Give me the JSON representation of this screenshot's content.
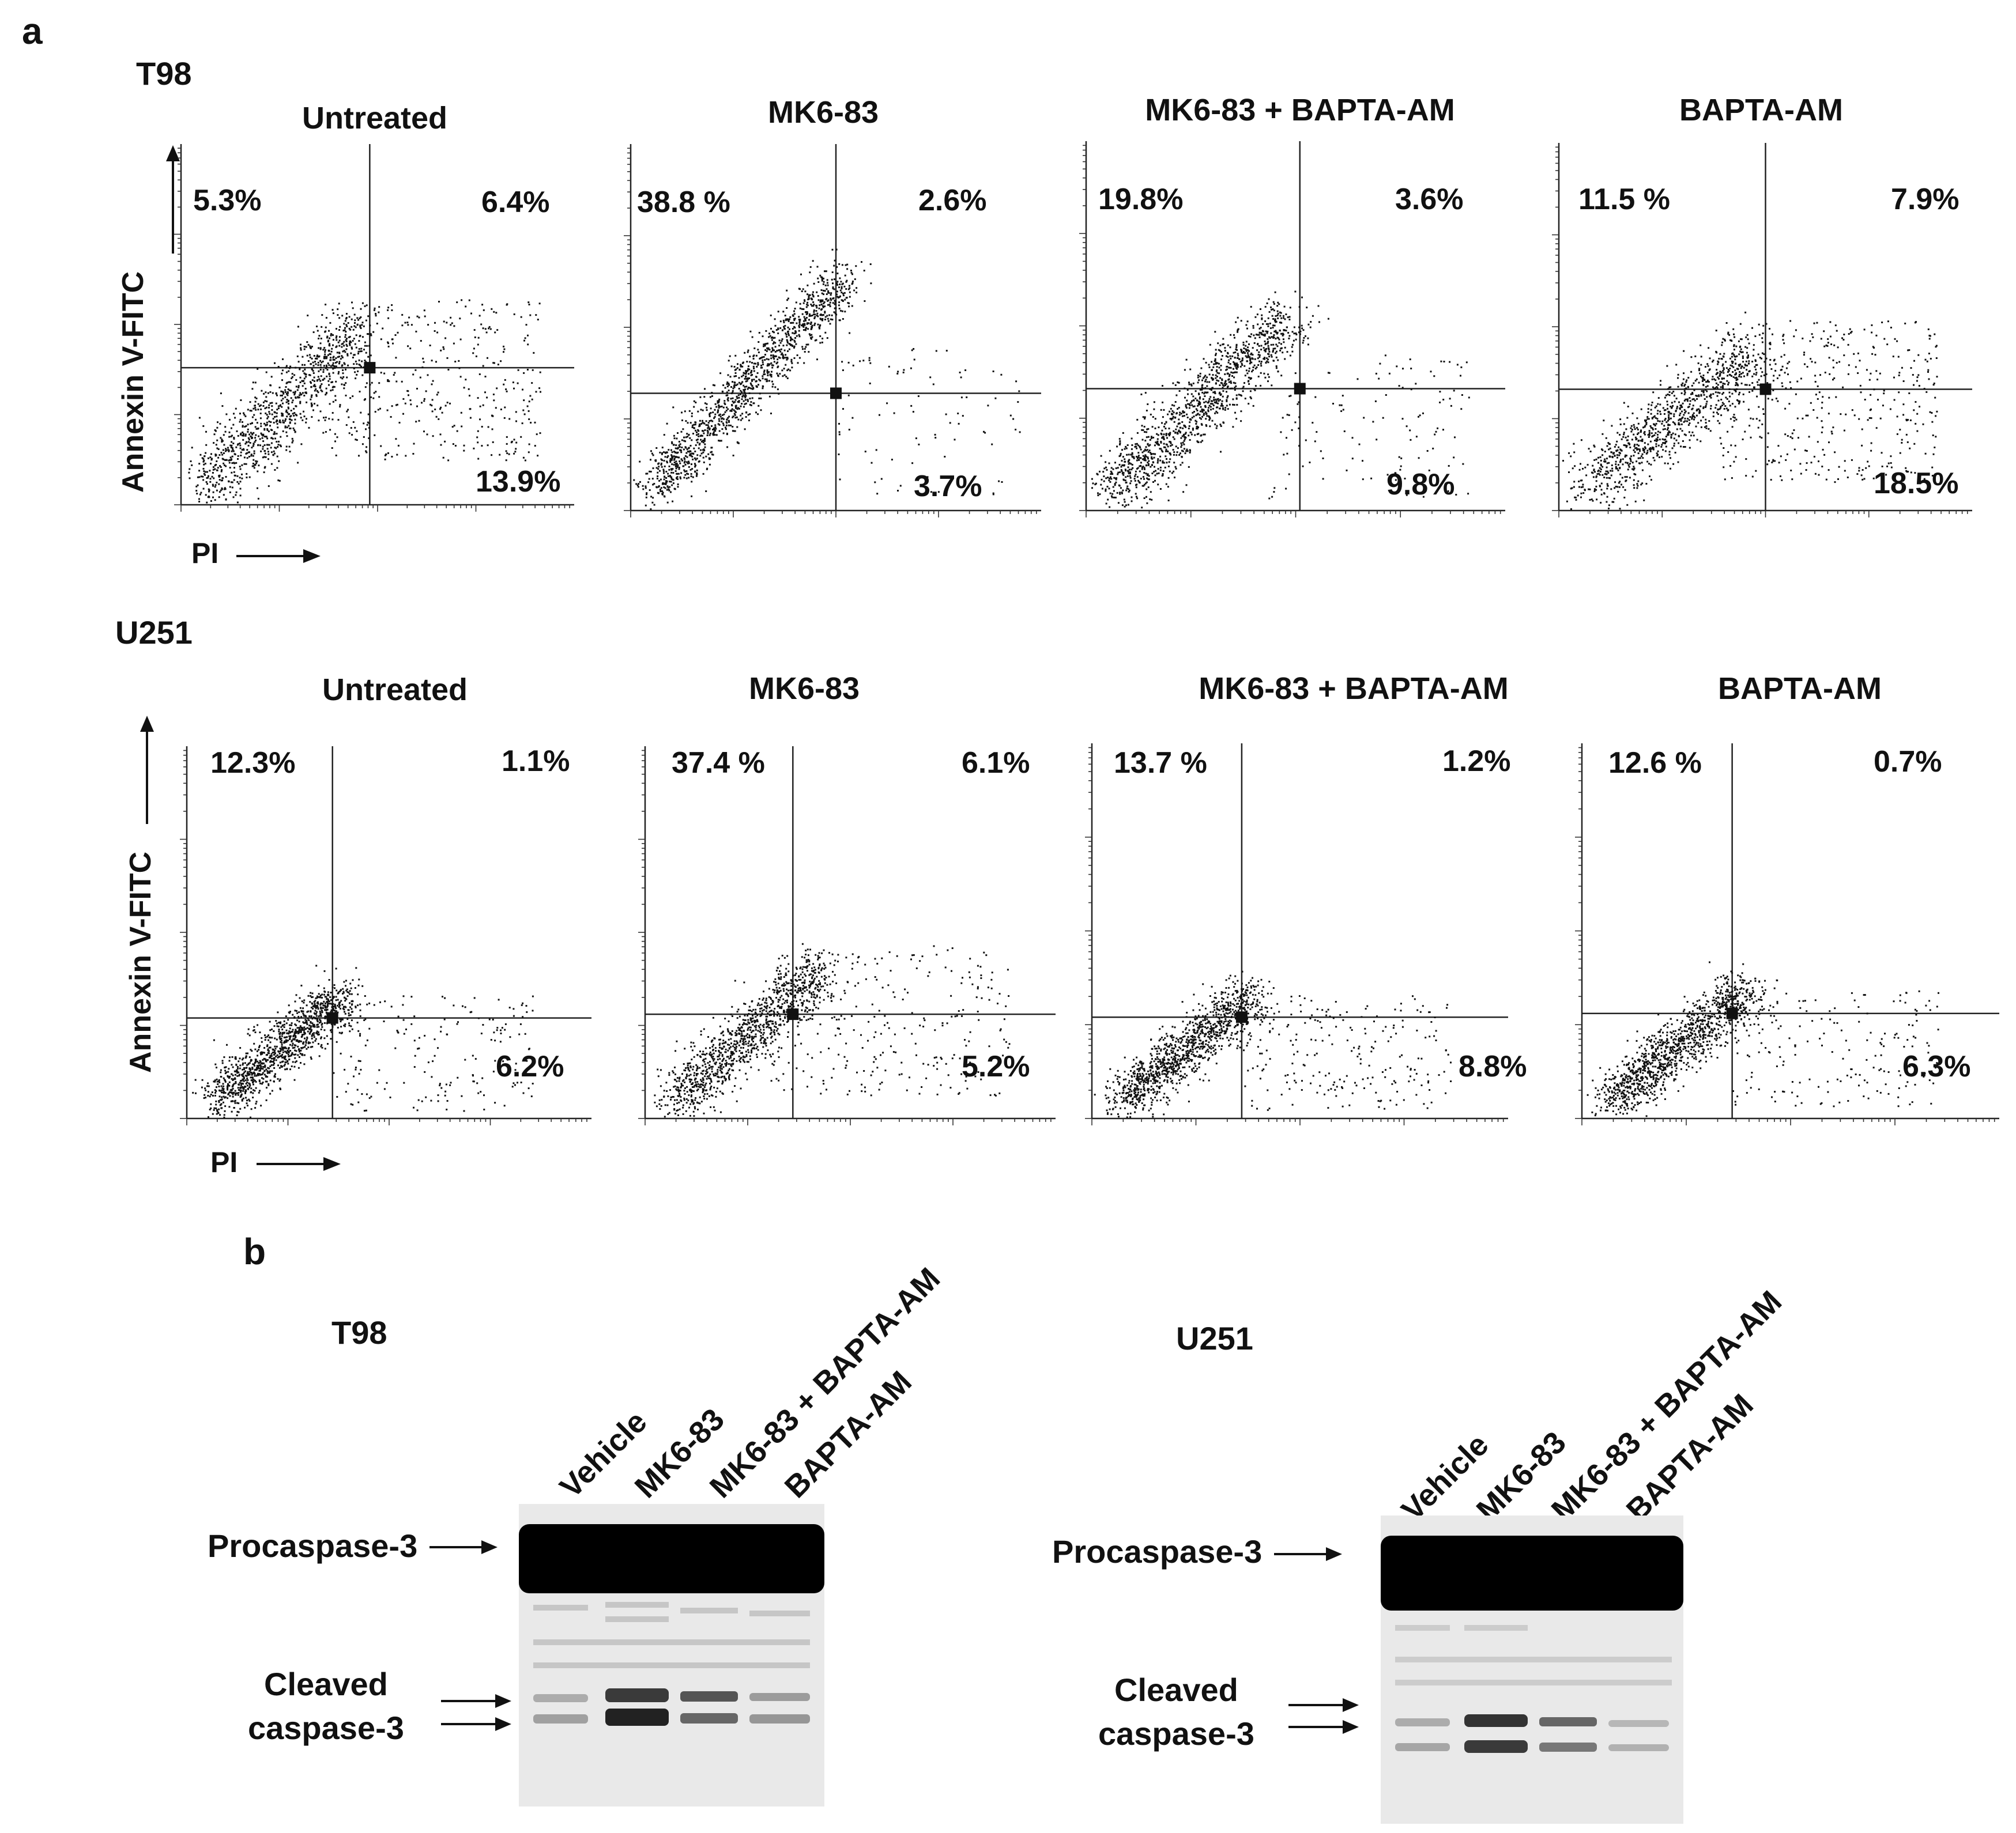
{
  "panel_a": {
    "letter": "a",
    "y_axis_label": "Annexin V-FITC",
    "x_axis_label": "PI",
    "rows": [
      {
        "cell_line": "T98",
        "plots": [
          {
            "title": "Untreated",
            "upper_left": "5.3%",
            "upper_right": "6.4%",
            "lower_right": "13.9%"
          },
          {
            "title": "MK6-83",
            "upper_left": "38.8 %",
            "upper_right": "2.6%",
            "lower_right": "3.7%"
          },
          {
            "title": "MK6-83 + BAPTA-AM",
            "upper_left": "19.8%",
            "upper_right": "3.6%",
            "lower_right": "9.8%"
          },
          {
            "title": "BAPTA-AM",
            "upper_left": "11.5 %",
            "upper_right": "7.9%",
            "lower_right": "18.5%"
          }
        ]
      },
      {
        "cell_line": "U251",
        "plots": [
          {
            "title": "Untreated",
            "upper_left": "12.3%",
            "upper_right": "1.1%",
            "lower_right": "6.2%"
          },
          {
            "title": "MK6-83",
            "upper_left": "37.4 %",
            "upper_right": "6.1%",
            "lower_right": "5.2%"
          },
          {
            "title": "MK6-83 + BAPTA-AM",
            "upper_left": "13.7 %",
            "upper_right": "1.2%",
            "lower_right": "8.8%"
          },
          {
            "title": "BAPTA-AM",
            "upper_left": "12.6 %",
            "upper_right": "0.7%",
            "lower_right": "6.3%"
          }
        ]
      }
    ]
  },
  "panel_b": {
    "letter": "b",
    "procaspase_label": "Procaspase-3",
    "cleaved_label_line1": "Cleaved",
    "cleaved_label_line2": "caspase-3",
    "blots": [
      {
        "cell_line": "T98",
        "lanes": [
          "Vehicle",
          "MK6-83",
          "MK6-83 + BAPTA-AM",
          "BAPTA-AM"
        ]
      },
      {
        "cell_line": "U251",
        "lanes": [
          "Vehicle",
          "MK6-83",
          "MK6-83 + BAPTA-AM",
          "BAPTA-AM"
        ]
      }
    ]
  }
}
